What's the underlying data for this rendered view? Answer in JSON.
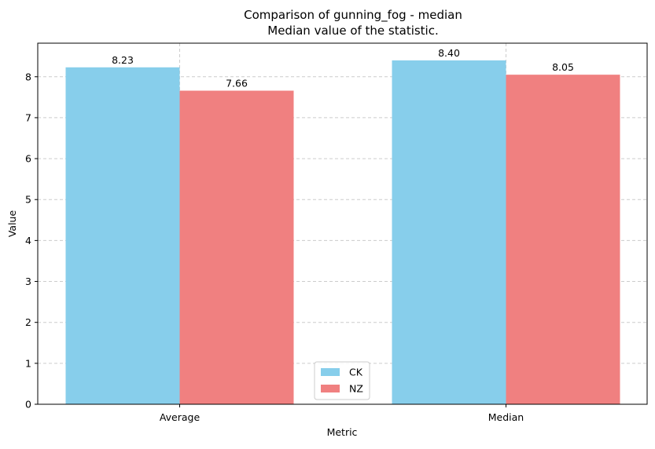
{
  "chart_data": {
    "type": "bar",
    "title": "Comparison of gunning_fog - median",
    "subtitle": "Median value of the statistic.",
    "xlabel": "Metric",
    "ylabel": "Value",
    "categories": [
      "Average",
      "Median"
    ],
    "series": [
      {
        "name": "CK",
        "color": "#87CEEB",
        "values": [
          8.23,
          8.4
        ],
        "labels": [
          "8.23",
          "8.40"
        ]
      },
      {
        "name": "NZ",
        "color": "#F08080",
        "values": [
          7.66,
          8.05
        ],
        "labels": [
          "7.66",
          "8.05"
        ]
      }
    ],
    "ylim": [
      0,
      8.82
    ],
    "yticks": [
      0,
      1,
      2,
      3,
      4,
      5,
      6,
      7,
      8
    ],
    "ytick_labels": [
      "0",
      "1",
      "2",
      "3",
      "4",
      "5",
      "6",
      "7",
      "8"
    ],
    "grid": true,
    "grid_style": "dashed",
    "legend_position": "bottom-center"
  }
}
